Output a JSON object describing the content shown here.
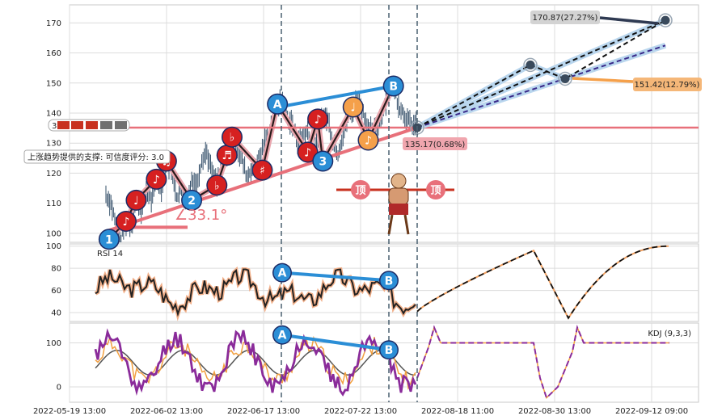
{
  "chart_data": [
    {
      "type": "candlestick",
      "panel": "price",
      "ylim": [
        97,
        176
      ],
      "yticks": [
        100,
        110,
        120,
        130,
        140,
        150,
        160,
        170
      ],
      "xticks": [
        "2022-05-19 13:00",
        "2022-06-02 13:00",
        "2022-06-17 13:00",
        "2022-07-22 13:00",
        "2022-08-18 11:00",
        "2022-08-30 13:00",
        "2022-09-12 09:00"
      ],
      "price_path": [
        [
          0,
          113
        ],
        [
          0.8,
          110
        ],
        [
          1.6,
          103
        ],
        [
          2.4,
          98
        ],
        [
          3.2,
          104
        ],
        [
          4,
          103
        ],
        [
          4.8,
          111
        ],
        [
          5.6,
          107
        ],
        [
          6.4,
          114
        ],
        [
          7.2,
          111
        ],
        [
          8,
          118
        ],
        [
          8.8,
          115
        ],
        [
          9.6,
          124
        ],
        [
          10.4,
          121
        ],
        [
          11.2,
          113
        ],
        [
          12,
          114
        ],
        [
          12.8,
          110
        ],
        [
          13.6,
          118
        ],
        [
          14.4,
          116
        ],
        [
          15.2,
          125
        ],
        [
          16,
          127
        ],
        [
          16.8,
          120
        ],
        [
          17.6,
          116
        ],
        [
          18.4,
          124
        ],
        [
          19.2,
          126
        ],
        [
          20,
          132
        ],
        [
          20.8,
          129
        ],
        [
          21.6,
          124
        ],
        [
          22.4,
          119
        ],
        [
          23.2,
          122
        ],
        [
          24,
          124
        ],
        [
          24.8,
          128
        ],
        [
          25.6,
          132
        ],
        [
          26.4,
          136
        ],
        [
          27.2,
          143
        ],
        [
          28,
          144
        ],
        [
          28.8,
          138
        ],
        [
          29.6,
          136
        ],
        [
          30.4,
          130
        ],
        [
          31.2,
          133
        ],
        [
          32,
          134
        ],
        [
          32.8,
          127
        ],
        [
          33.6,
          131
        ],
        [
          34.4,
          140
        ],
        [
          35.2,
          138
        ],
        [
          36,
          131
        ],
        [
          36.8,
          127
        ],
        [
          37.6,
          133
        ],
        [
          38.4,
          139
        ],
        [
          39.2,
          141
        ],
        [
          40,
          146
        ],
        [
          40.8,
          140
        ],
        [
          41.6,
          135
        ],
        [
          42.4,
          133
        ],
        [
          43.2,
          137
        ],
        [
          44,
          141
        ],
        [
          44.8,
          148
        ],
        [
          45.6,
          149
        ],
        [
          46.4,
          143
        ],
        [
          47.2,
          140
        ],
        [
          48,
          137
        ],
        [
          48.8,
          136
        ],
        [
          49.6,
          135
        ]
      ],
      "wave_points": [
        {
          "label": "1",
          "x": 0.5,
          "y": 98
        },
        {
          "label": "♪",
          "x": 3.2,
          "y": 104
        },
        {
          "label": "♩",
          "x": 4.8,
          "y": 111
        },
        {
          "label": "♪",
          "x": 8,
          "y": 118
        },
        {
          "label": "♫",
          "x": 9.6,
          "y": 124
        },
        {
          "label": "2",
          "x": 13.6,
          "y": 111
        },
        {
          "label": "♭",
          "x": 17.6,
          "y": 116
        },
        {
          "label": "♬",
          "x": 19.2,
          "y": 126
        },
        {
          "label": "♭",
          "x": 20,
          "y": 132
        },
        {
          "label": "♯",
          "x": 24.8,
          "y": 121
        },
        {
          "label": "A",
          "x": 27.2,
          "y": 143
        },
        {
          "label": "♪",
          "x": 32,
          "y": 127
        },
        {
          "label": "♪",
          "x": 33.6,
          "y": 138
        },
        {
          "label": "3",
          "x": 34.4,
          "y": 124
        },
        {
          "label": "♩",
          "x": 39.2,
          "y": 142
        },
        {
          "label": "♪",
          "x": 41.6,
          "y": 131
        },
        {
          "label": "B",
          "x": 45.6,
          "y": 149
        }
      ],
      "wave_colors": {
        "1": "#2b8ed6",
        "2": "#2b8ed6",
        "3": "#2b8ed6",
        "A": "#2b8ed6",
        "B": "#2b8ed6"
      },
      "support_level": 135.17,
      "support_label": "135.17(0.68%)",
      "target_high": {
        "value": 170.87,
        "label": "170.87(27.27%)"
      },
      "target_mid": {
        "value": 151.42,
        "label": "151.42(12.79%)"
      },
      "angle_label": "∠33.1°",
      "support_note": "上涨趋势提供的支撑: 可信度评分: 3.0",
      "top_badge": "顶",
      "level_prefix": "3"
    },
    {
      "type": "line",
      "panel": "rsi",
      "title": "RSI 14",
      "ylim": [
        32,
        102
      ],
      "yticks": [
        40,
        60,
        80,
        100
      ]
    },
    {
      "type": "line",
      "panel": "kdj",
      "title": "KDJ (9,3,3)",
      "ylim": [
        -35,
        145
      ],
      "yticks": [
        0,
        100
      ]
    }
  ],
  "colors": {
    "wave_blue": "#2b8ed6",
    "wave_red": "#d62020",
    "wave_orange": "#f5a04a",
    "support_line": "#e8707a",
    "target_line": "#b9d6ee",
    "rsi_line": "#222222",
    "kdj_k": "#8a2b9a"
  }
}
